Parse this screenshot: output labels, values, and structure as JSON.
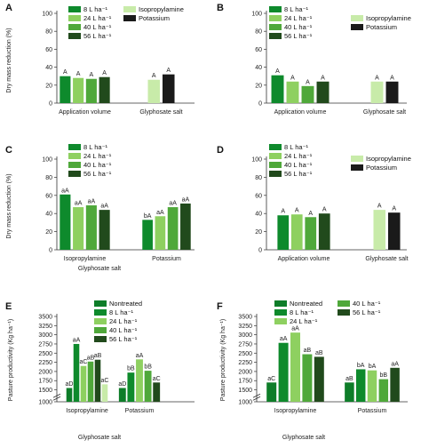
{
  "colors": {
    "nontreated": "#0e7d29",
    "l8": "#0e8a2c",
    "l24": "#8ed060",
    "l40": "#4fa83a",
    "l56": "#214a1c",
    "isopropylamine": "#c8eba9",
    "potassium": "#1a1a1a"
  },
  "chart_data": [
    {
      "panel": "A",
      "type": "bar",
      "ylabel": "Dry mass reduction (%)",
      "ylim": [
        0,
        100
      ],
      "yticks": [
        0,
        20,
        40,
        60,
        80,
        100
      ],
      "groups": [
        {
          "label": "Application volume",
          "bars": [
            {
              "series": "8 L ha⁻¹",
              "value": 30,
              "label": "A"
            },
            {
              "series": "24 L ha⁻¹",
              "value": 28,
              "label": "A"
            },
            {
              "series": "40 L ha⁻¹",
              "value": 27,
              "label": "A"
            },
            {
              "series": "56 L ha⁻¹",
              "value": 29,
              "label": "A"
            }
          ]
        },
        {
          "label": "Glyphosate salt",
          "bars": [
            {
              "series": "Isopropylamine",
              "value": 26,
              "label": "A"
            },
            {
              "series": "Potassium",
              "value": 32,
              "label": "A"
            }
          ]
        }
      ],
      "legends": [
        {
          "entries": [
            "8 L ha⁻¹",
            "24 L ha⁻¹",
            "40 L ha⁻¹",
            "56 L ha⁻¹"
          ]
        },
        {
          "entries": [
            "Isopropylamine",
            "Potassium"
          ]
        }
      ]
    },
    {
      "panel": "B",
      "type": "bar",
      "ylabel": "",
      "ylim": [
        0,
        100
      ],
      "yticks": [
        0,
        20,
        40,
        60,
        80,
        100
      ],
      "groups": [
        {
          "label": "Application volume",
          "bars": [
            {
              "series": "8 L ha⁻¹",
              "value": 31,
              "label": "A"
            },
            {
              "series": "24 L ha⁻¹",
              "value": 24,
              "label": "A"
            },
            {
              "series": "40 L ha⁻¹",
              "value": 19,
              "label": "A"
            },
            {
              "series": "56 L ha⁻¹",
              "value": 24,
              "label": "A"
            }
          ]
        },
        {
          "label": "Glyphosate salt",
          "bars": [
            {
              "series": "Isopropylamine",
              "value": 24,
              "label": "A"
            },
            {
              "series": "Potassium",
              "value": 24,
              "label": "A"
            }
          ]
        }
      ],
      "legends": [
        {
          "entries": [
            "8 L ha⁻¹",
            "24 L ha⁻¹",
            "40 L ha⁻¹",
            "56 L ha⁻¹"
          ]
        },
        {
          "entries": [
            "Isopropylamine",
            "Potassium"
          ]
        }
      ]
    },
    {
      "panel": "C",
      "type": "bar",
      "ylabel": "Dry mass reduction (%)",
      "xlabel": "Glyphosate salt",
      "ylim": [
        0,
        100
      ],
      "yticks": [
        0,
        20,
        40,
        60,
        80,
        100
      ],
      "groups": [
        {
          "label": "Isopropylamine",
          "bars": [
            {
              "series": "8 L ha⁻¹",
              "value": 61,
              "label": "aA"
            },
            {
              "series": "24 L ha⁻¹",
              "value": 47,
              "label": "aA"
            },
            {
              "series": "40 L ha⁻¹",
              "value": 49,
              "label": "aA"
            },
            {
              "series": "56 L ha⁻¹",
              "value": 44,
              "label": "aA"
            }
          ]
        },
        {
          "label": "Potassium",
          "bars": [
            {
              "series": "8 L ha⁻¹",
              "value": 33,
              "label": "bA"
            },
            {
              "series": "24 L ha⁻¹",
              "value": 37,
              "label": "aA"
            },
            {
              "series": "40 L ha⁻¹",
              "value": 47,
              "label": "aA"
            },
            {
              "series": "56 L ha⁻¹",
              "value": 51,
              "label": "aA"
            }
          ]
        }
      ],
      "legends": [
        {
          "entries": [
            "8 L ha⁻¹",
            "24 L ha⁻¹",
            "40 L ha⁻¹",
            "56 L ha⁻¹"
          ]
        }
      ]
    },
    {
      "panel": "D",
      "type": "bar",
      "ylabel": "",
      "ylim": [
        0,
        100
      ],
      "yticks": [
        0,
        20,
        40,
        60,
        80,
        100
      ],
      "groups": [
        {
          "label": "Application volume",
          "bars": [
            {
              "series": "8 L ha⁻¹",
              "value": 38,
              "label": "A"
            },
            {
              "series": "24 L ha⁻¹",
              "value": 39,
              "label": "A"
            },
            {
              "series": "40 L ha⁻¹",
              "value": 36,
              "label": "A"
            },
            {
              "series": "56 L ha⁻¹",
              "value": 40,
              "label": "A"
            }
          ]
        },
        {
          "label": "Glyphosate salt",
          "bars": [
            {
              "series": "Isopropylamine",
              "value": 44,
              "label": "A"
            },
            {
              "series": "Potassium",
              "value": 41,
              "label": "A"
            }
          ]
        }
      ],
      "legends": [
        {
          "entries": [
            "8 L ha⁻¹",
            "24 L ha⁻¹",
            "40 L ha⁻¹",
            "56 L ha⁻¹"
          ]
        },
        {
          "entries": [
            "Isopropylamine",
            "Potassium"
          ]
        }
      ]
    },
    {
      "panel": "E",
      "type": "bar",
      "ylabel": "Pasture productivity (Kg ha⁻¹)",
      "xlabel": "Glyphosate salt",
      "ylim": [
        1000,
        3500
      ],
      "axis_break": true,
      "yticks": [
        1000,
        1500,
        1750,
        2000,
        2250,
        2500,
        2750,
        3000,
        3250,
        3500
      ],
      "groups": [
        {
          "label": "Isopropylamine",
          "bars": [
            {
              "series": "Nontreated",
              "value": 1550,
              "label": "aD"
            },
            {
              "series": "8 L ha⁻¹",
              "value": 2750,
              "label": "aA"
            },
            {
              "series": "24 L ha⁻¹",
              "value": 2150,
              "label": "aC"
            },
            {
              "series": "40 L ha⁻¹",
              "value": 2270,
              "label": "aB"
            },
            {
              "series": "56 L ha⁻¹",
              "value": 2320,
              "label": "aB"
            },
            {
              "series": "56 L ha⁻¹ (light)",
              "value": 1650,
              "label": "aC"
            }
          ]
        },
        {
          "label": "Potassium",
          "bars": [
            {
              "series": "Nontreated",
              "value": 1550,
              "label": "aD"
            },
            {
              "series": "8 L ha⁻¹",
              "value": 1970,
              "label": "bB"
            },
            {
              "series": "24 L ha⁻¹",
              "value": 2330,
              "label": "aA"
            },
            {
              "series": "40 L ha⁻¹",
              "value": 2020,
              "label": "bB"
            },
            {
              "series": "56 L ha⁻¹",
              "value": 1700,
              "label": "aC"
            }
          ]
        }
      ],
      "legends": [
        {
          "entries": [
            "Nontreated",
            "8 L ha⁻¹",
            "24 L ha⁻¹",
            "40 L ha⁻¹",
            "56 L ha⁻¹"
          ]
        }
      ]
    },
    {
      "panel": "F",
      "type": "bar",
      "ylabel": "Pasture productivity (Kg ha⁻¹)",
      "xlabel": "Glyphosate salt",
      "ylim": [
        1000,
        3500
      ],
      "axis_break": true,
      "yticks": [
        1000,
        1500,
        1750,
        2000,
        2250,
        2500,
        2750,
        3000,
        3250,
        3500
      ],
      "groups": [
        {
          "label": "Isopropylamine",
          "bars": [
            {
              "series": "Nontreated",
              "value": 1700,
              "label": "aC"
            },
            {
              "series": "8 L ha⁻¹",
              "value": 2780,
              "label": "aA"
            },
            {
              "series": "24 L ha⁻¹",
              "value": 3060,
              "label": "aA"
            },
            {
              "series": "40 L ha⁻¹",
              "value": 2470,
              "label": "aB"
            },
            {
              "series": "56 L ha⁻¹",
              "value": 2400,
              "label": "aB"
            }
          ]
        },
        {
          "label": "Potassium",
          "bars": [
            {
              "series": "Nontreated",
              "value": 1700,
              "label": "aB"
            },
            {
              "series": "8 L ha⁻¹",
              "value": 2060,
              "label": "bA"
            },
            {
              "series": "24 L ha⁻¹",
              "value": 2030,
              "label": "bA"
            },
            {
              "series": "40 L ha⁻¹",
              "value": 1790,
              "label": "bB"
            },
            {
              "series": "56 L ha⁻¹",
              "value": 2100,
              "label": "aA"
            }
          ]
        }
      ],
      "legends": [
        {
          "entries": [
            "Nontreated",
            "8 L ha⁻¹",
            "24 L ha⁻¹"
          ]
        },
        {
          "entries": [
            "40 L ha⁻¹",
            "56 L ha⁻¹"
          ]
        }
      ]
    }
  ]
}
